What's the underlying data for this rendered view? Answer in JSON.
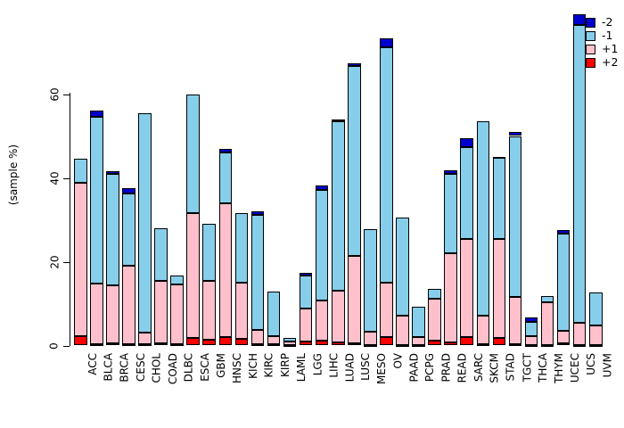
{
  "chart_data": {
    "type": "bar",
    "stacked": true,
    "orientation": "vertical",
    "title": "",
    "xlabel": "",
    "ylabel": "(sample %)",
    "ytick_values": [
      0,
      20,
      40,
      60
    ],
    "ylim": [
      0,
      80
    ],
    "grid": false,
    "legend_position": "top-right",
    "stack_order_bottom_to_top": [
      "+2",
      "+1",
      "-1",
      "-2"
    ],
    "legend": [
      {
        "label": "-2",
        "color": "#0000CD"
      },
      {
        "label": "-1",
        "color": "#87CEEB"
      },
      {
        "label": "+1",
        "color": "#FFC0CB"
      },
      {
        "label": "+2",
        "color": "#FF0000"
      }
    ],
    "categories": [
      "ACC",
      "BLCA",
      "BRCA",
      "CESC",
      "CHOL",
      "COAD",
      "DLBC",
      "ESCA",
      "GBM",
      "HNSC",
      "KICH",
      "KIRC",
      "KIRP",
      "LAML",
      "LGG",
      "LIHC",
      "LUAD",
      "LUSC",
      "MESO",
      "OV",
      "PAAD",
      "PCPG",
      "PRAD",
      "READ",
      "SARC",
      "SKCM",
      "STAD",
      "TGCT",
      "THCA",
      "THYM",
      "UCEC",
      "UCS",
      "UVM"
    ],
    "series": [
      {
        "name": "+2",
        "color": "#FF0000",
        "values": [
          2.3,
          0.3,
          0.5,
          0.3,
          0.3,
          0.6,
          0.3,
          1.8,
          1.4,
          2.0,
          1.5,
          0.4,
          0.3,
          0.1,
          1.0,
          1.1,
          0.8,
          0.5,
          0.2,
          2.0,
          0.2,
          0.2,
          1.2,
          0.8,
          2.0,
          0.4,
          1.9,
          0.4,
          0.2,
          0.1,
          0.5,
          0.2,
          0.1
        ]
      },
      {
        "name": "+1",
        "color": "#FFC0CB",
        "values": [
          36.5,
          14.5,
          13.9,
          18.7,
          2.7,
          14.9,
          14.2,
          29.7,
          14.0,
          32.0,
          13.5,
          3.4,
          1.9,
          0.8,
          7.9,
          9.7,
          12.3,
          20.8,
          3.1,
          12.9,
          7.0,
          1.9,
          9.9,
          21.3,
          23.5,
          6.7,
          23.6,
          11.1,
          2.1,
          10.2,
          3.1,
          5.3,
          4.7
        ]
      },
      {
        "name": "-1",
        "color": "#87CEEB",
        "values": [
          5.7,
          39.7,
          26.5,
          17.2,
          52.5,
          12.5,
          2.1,
          28.5,
          13.6,
          12.1,
          16.7,
          27.4,
          10.6,
          0.9,
          7.8,
          26.4,
          40.5,
          45.5,
          24.5,
          56.3,
          23.3,
          7.2,
          2.4,
          18.9,
          21.9,
          46.4,
          19.2,
          38.5,
          3.3,
          1.6,
          23.0,
          70.9,
          7.8
        ]
      },
      {
        "name": "-2",
        "color": "#0000CD",
        "values": [
          0,
          1.5,
          0.6,
          1.4,
          0,
          0,
          0,
          0,
          0,
          0.9,
          0,
          0.9,
          0,
          0,
          0.7,
          0.9,
          0.4,
          0.5,
          0,
          2.0,
          0,
          0,
          0,
          0.9,
          2.0,
          0,
          0.3,
          0.9,
          1.0,
          0,
          0.9,
          2.6,
          0
        ]
      }
    ]
  }
}
